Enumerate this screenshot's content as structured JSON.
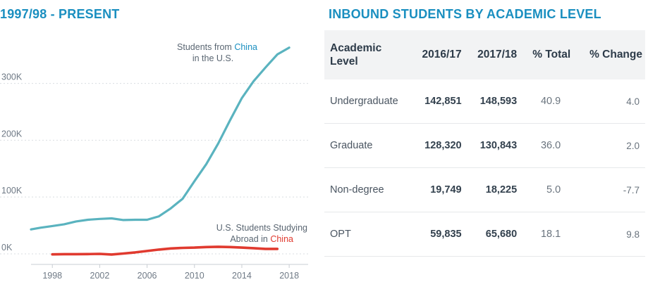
{
  "left_title": "1997/98 - PRESENT",
  "right_title": "INBOUND STUDENTS BY ACADEMIC LEVEL",
  "chart_data": [
    {
      "type": "line",
      "title": "1997/98 - PRESENT",
      "xlim": [
        1996.2,
        2019.6
      ],
      "ylim": [
        -5000,
        375000
      ],
      "x_ticks": [
        1998,
        2002,
        2006,
        2010,
        2014,
        2018
      ],
      "x_tick_labels": [
        "1998",
        "2002",
        "2006",
        "2010",
        "2014",
        "2018"
      ],
      "y_ticks": [
        0,
        100000,
        200000,
        300000
      ],
      "y_tick_labels": [
        "0K",
        "100K",
        "200K",
        "300K"
      ],
      "grid": "horizontal dashed",
      "series": [
        {
          "name": "Students from China in the U.S.",
          "color": "#5ab3bf",
          "x": [
            1996.2,
            1997,
            1998,
            1999,
            2000,
            2001,
            2002,
            2003,
            2004,
            2005,
            2006,
            2007,
            2008,
            2009,
            2010,
            2011,
            2012,
            2013,
            2014,
            2015,
            2016,
            2017,
            2018
          ],
          "values": [
            43000,
            46000,
            49000,
            52000,
            57000,
            60000,
            61500,
            62500,
            59500,
            60000,
            60000,
            66000,
            80000,
            97000,
            128000,
            158000,
            194000,
            235000,
            274000,
            304000,
            328000,
            351000,
            363000
          ]
        },
        {
          "name": "U.S. Students Studying Abroad in China",
          "color": "#e03a2f",
          "x": [
            1998,
            1999,
            2000,
            2001,
            2002,
            2003,
            2004,
            2005,
            2006,
            2007,
            2008,
            2009,
            2010,
            2011,
            2012,
            2013,
            2014,
            2015,
            2016,
            2017
          ],
          "values": [
            -900,
            -600,
            -500,
            -400,
            0,
            -1200,
            600,
            2500,
            5000,
            7500,
            9500,
            10500,
            11000,
            12000,
            12500,
            12000,
            11000,
            10000,
            8800,
            8800
          ]
        }
      ],
      "annotations": [
        {
          "line1_prefix": "Students from ",
          "line1_accent": "China",
          "line2": "in the U.S."
        },
        {
          "line1": "U.S. Students Studying",
          "line2_prefix": "Abroad in ",
          "line2_accent": "China"
        }
      ]
    },
    {
      "type": "table",
      "title": "INBOUND STUDENTS BY ACADEMIC LEVEL",
      "columns": [
        "Academic Level",
        "2016/17",
        "2017/18",
        "% Total",
        "% Change"
      ],
      "rows": [
        {
          "level": "Undergraduate",
          "y2016": "142,851",
          "y2017": "148,593",
          "total": "40.9",
          "change": "4.0"
        },
        {
          "level": "Graduate",
          "y2016": "128,320",
          "y2017": "130,843",
          "total": "36.0",
          "change": "2.0"
        },
        {
          "level": "Non-degree",
          "y2016": "19,749",
          "y2017": "18,225",
          "total": "5.0",
          "change": "-7.7"
        },
        {
          "level": "OPT",
          "y2016": "59,835",
          "y2017": "65,680",
          "total": "18.1",
          "change": "9.8"
        }
      ]
    }
  ],
  "colors": {
    "title": "#1a8fc0",
    "china_line": "#5ab3bf",
    "us_line": "#e03a2f",
    "grid": "#d9dde1",
    "table_header_bg": "#f2f3f4"
  },
  "table": {
    "header_level_1": "Academic",
    "header_level_2": "Level",
    "header_2016": "2016/17",
    "header_2017": "2017/18",
    "header_total": "% Total",
    "header_change": "% Change"
  }
}
